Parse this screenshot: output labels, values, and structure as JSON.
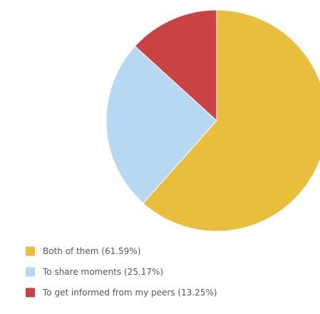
{
  "chart_data": {
    "type": "pie",
    "slices": [
      {
        "label": "Both of them (61.59%)",
        "value": 61.59,
        "color": "#E8BE3C"
      },
      {
        "label": "To share moments (25.17%)",
        "value": 25.17,
        "color": "#B6D8F2"
      },
      {
        "label": "To get informed from my peers (13.25%)",
        "value": 13.25,
        "color": "#C94343"
      }
    ],
    "legend_position": "bottom-left"
  }
}
